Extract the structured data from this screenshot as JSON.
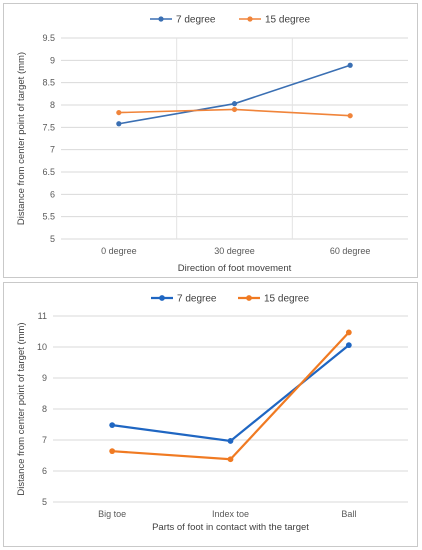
{
  "chart_data": [
    {
      "type": "line",
      "categories": [
        "0 degree",
        "30 degree",
        "60 degree"
      ],
      "series": [
        {
          "name": "7 degree",
          "values": [
            7.58,
            8.03,
            8.89
          ],
          "color": "#3a6fb3"
        },
        {
          "name": "15 degree",
          "values": [
            7.83,
            7.9,
            7.76
          ],
          "color": "#f0843a"
        }
      ],
      "xlabel": "Direction of foot movement",
      "ylabel": "Distance from center point of target (mm)",
      "ylim": [
        5,
        9.5
      ],
      "yticks": [
        "5",
        "5.5",
        "6",
        "6.5",
        "7",
        "7.5",
        "8",
        "8.5",
        "9",
        "9.5"
      ],
      "grid": true,
      "legend": "top-center",
      "markers": true
    },
    {
      "type": "line",
      "categories": [
        "Big toe",
        "Index toe",
        "Ball"
      ],
      "series": [
        {
          "name": "7 degree",
          "values": [
            7.48,
            6.97,
            10.06
          ],
          "color": "#1f66c2"
        },
        {
          "name": "15 degree",
          "values": [
            6.64,
            6.38,
            10.47
          ],
          "color": "#f07a22"
        }
      ],
      "xlabel": "Parts of foot in contact with the target",
      "ylabel": "Distance from center point of target (mm)",
      "ylim": [
        5,
        11
      ],
      "yticks": [
        "5",
        "6",
        "7",
        "8",
        "9",
        "10",
        "11"
      ],
      "grid": true,
      "legend": "top-center",
      "markers": true
    }
  ]
}
